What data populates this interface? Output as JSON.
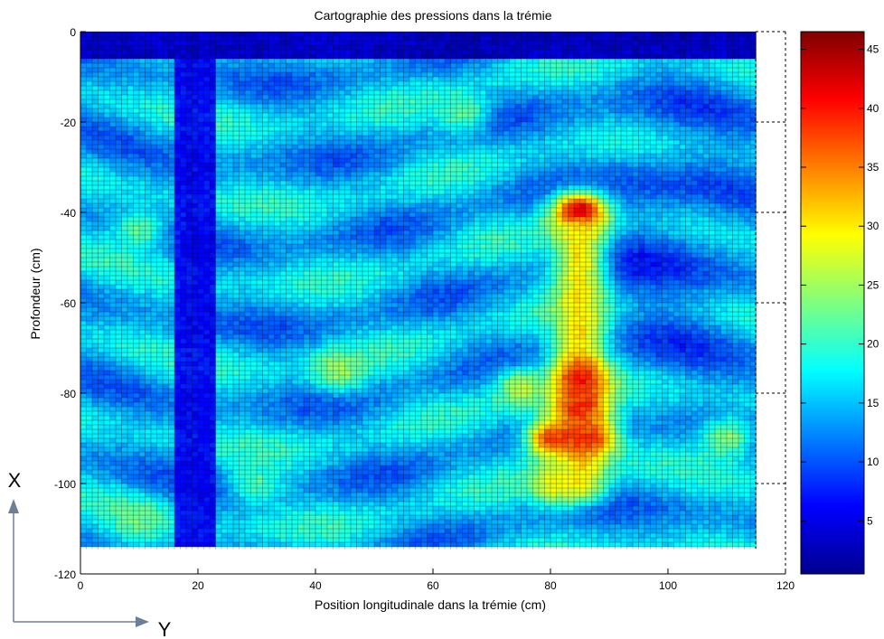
{
  "chart_data": {
    "type": "heatmap",
    "title": "Cartographie des pressions dans la trémie",
    "xlabel": "Position longitudinale dans la trémie (cm)",
    "ylabel": "Profondeur (cm)",
    "xlim": [
      0,
      120
    ],
    "ylim": [
      -120,
      0
    ],
    "xticks": [
      "0",
      "20",
      "40",
      "60",
      "80",
      "100",
      "120"
    ],
    "yticks": [
      "0",
      "-20",
      "-40",
      "-60",
      "-80",
      "-100",
      "-120"
    ],
    "grid": true,
    "data_extent": {
      "x": [
        0,
        115
      ],
      "y": [
        -114.5,
        0
      ]
    },
    "colorbar": {
      "colormap": "jet",
      "range": [
        0.5,
        46.5
      ],
      "ticks": [
        "5",
        "10",
        "15",
        "20",
        "25",
        "30",
        "35",
        "40",
        "45"
      ]
    },
    "base_pressure": 15,
    "features": [
      {
        "name": "surface layer",
        "x": [
          0,
          115
        ],
        "y": [
          -6,
          0
        ],
        "value": 2
      },
      {
        "name": "column y=20",
        "x": [
          16.5,
          23
        ],
        "y": [
          -114.5,
          -6
        ],
        "value": 5
      },
      {
        "name": "hot spot",
        "x": 85,
        "y": -40,
        "value": 46
      },
      {
        "name": "vertical band",
        "x": 85,
        "y": [
          -100,
          -45
        ],
        "value": 30
      },
      {
        "name": "hot spot",
        "x": 85,
        "y": -77,
        "value": 40
      },
      {
        "name": "hot spot",
        "x": 85,
        "y": -83,
        "value": 39
      },
      {
        "name": "hot band",
        "x": [
          80,
          87
        ],
        "y": -90,
        "value": 38
      },
      {
        "name": "warm spot",
        "x": 81,
        "y": -100,
        "value": 29
      },
      {
        "name": "warm spot",
        "x": 75,
        "y": -79,
        "value": 26
      },
      {
        "name": "warm spot",
        "x": 44,
        "y": -75,
        "value": 25
      },
      {
        "name": "warm spot",
        "x": 110,
        "y": -90,
        "value": 24
      },
      {
        "name": "warm spot",
        "x": 65,
        "y": -18,
        "value": 22
      },
      {
        "name": "warm spot",
        "x": 10,
        "y": -44,
        "value": 22
      },
      {
        "name": "warm spot",
        "x": 10,
        "y": -108,
        "value": 23
      },
      {
        "name": "warm spot",
        "x": 30,
        "y": -100,
        "value": 21
      }
    ]
  },
  "annotations": {
    "x_axis_letter": "X",
    "y_axis_letter": "Y"
  },
  "colors": {
    "grid_line": "#101010",
    "background": "#ffffff"
  }
}
